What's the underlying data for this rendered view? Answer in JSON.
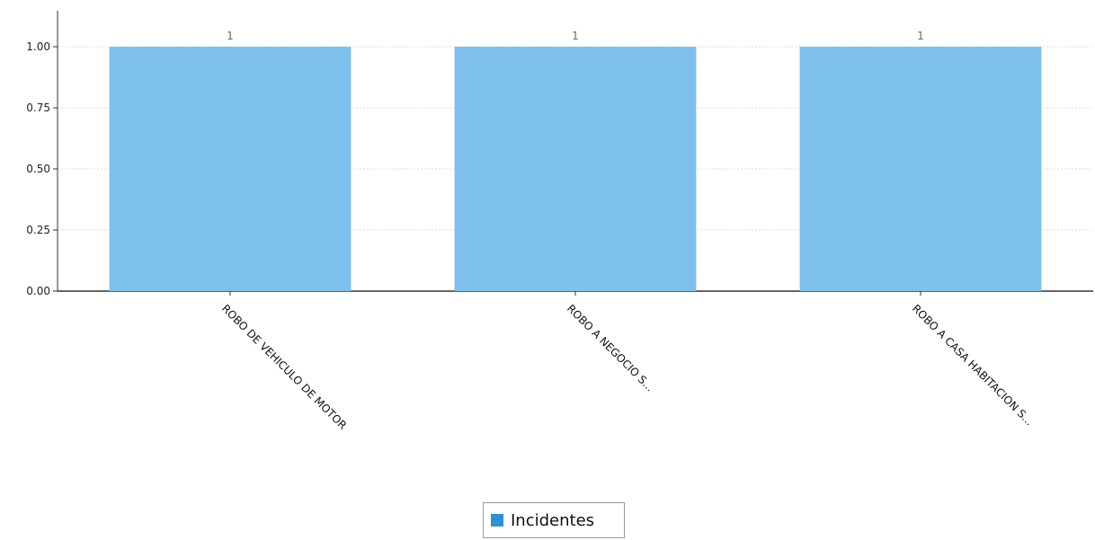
{
  "chart_data": {
    "type": "bar",
    "categories": [
      "ROBO DE VEHICULO DE MOTOR",
      "ROBO A NEGOCIO S...",
      "ROBO A CASA HABITACION S..."
    ],
    "series": [
      {
        "name": "Incidentes",
        "values": [
          1,
          1,
          1
        ],
        "data_labels": [
          "1",
          "1",
          "1"
        ]
      }
    ],
    "ylim": [
      0,
      1.0
    ],
    "yticks": [
      "0.00",
      "0.25",
      "0.50",
      "0.75",
      "1.00"
    ],
    "grid": true,
    "legend_position": "bottom-center",
    "colors": {
      "bar": "#7dc0ee",
      "legend_swatch": "#2f8fd8",
      "axis": "#333333",
      "grid": "#dddddd"
    }
  },
  "legend": {
    "label": "Incidentes"
  }
}
